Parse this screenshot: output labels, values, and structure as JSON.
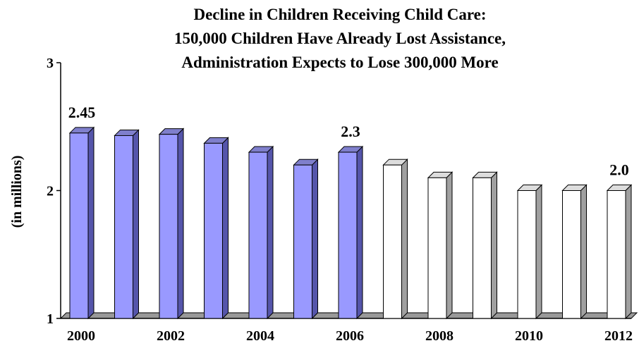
{
  "chart_data": {
    "type": "bar",
    "title_lines": [
      "Decline in Children Receiving Child Care:",
      "150,000 Children Have Already Lost Assistance,",
      "Administration Expects to Lose 300,000 More"
    ],
    "ylabel": "(in millions)",
    "xlabel": "",
    "ylim": [
      1,
      3
    ],
    "y_ticks": [
      "1",
      "2",
      "3"
    ],
    "categories": [
      "2000",
      "2001",
      "2002",
      "2003",
      "2004",
      "2005",
      "2006",
      "2007",
      "2008",
      "2009",
      "2010",
      "2011",
      "2012"
    ],
    "x_tick_labels": [
      "2000",
      "",
      "2002",
      "",
      "2004",
      "",
      "2006",
      "",
      "2008",
      "",
      "2010",
      "",
      "2012"
    ],
    "values": [
      2.45,
      2.43,
      2.44,
      2.37,
      2.3,
      2.2,
      2.3,
      2.2,
      2.1,
      2.1,
      2.0,
      2.0,
      2.0
    ],
    "data_labels": [
      {
        "index": 0,
        "text": "2.45"
      },
      {
        "index": 6,
        "text": "2.3"
      },
      {
        "index": 12,
        "text": "2.0"
      }
    ],
    "colors": {
      "actual_bar": "#9999ff",
      "projected_bar": "#ffffff",
      "bar_outline": "#000000",
      "floor": "#999999"
    },
    "projected_from_index": 7,
    "grid": false,
    "legend": "none"
  }
}
